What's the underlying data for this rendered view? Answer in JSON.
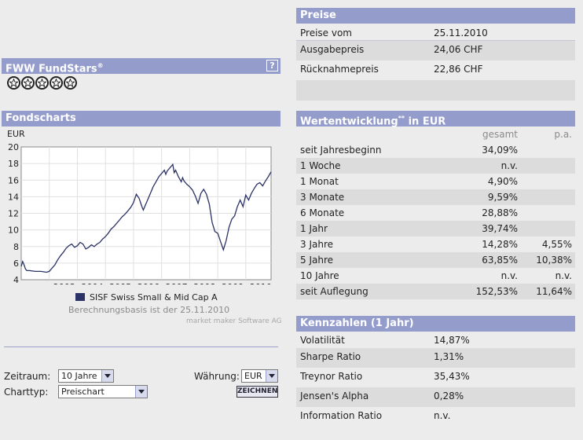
{
  "prices": {
    "title": "Preise",
    "rows": [
      {
        "label": "Preise vom",
        "value": "25.11.2010"
      },
      {
        "label": "Ausgabepreis",
        "value": "24,06 CHF"
      },
      {
        "label": "Rücknahmepreis",
        "value": "22,86 CHF"
      }
    ]
  },
  "fundstars": {
    "title": "FWW FundStars",
    "title_sup": "®",
    "help_label": "?",
    "rating": 5
  },
  "fundscharts": {
    "title": "Fondscharts",
    "legend_text": "SISF Swiss Small & Mid Cap A",
    "basis_text": "Berechnungsbasis ist der 25.11.2010",
    "credit_text": "market maker Software AG",
    "line_color": "#2b3266"
  },
  "chart_data": {
    "type": "line",
    "ylabel": "EUR",
    "ylim": [
      4,
      20
    ],
    "yticks": [
      4,
      6,
      8,
      10,
      12,
      14,
      16,
      18,
      20
    ],
    "xlim": [
      2002.0,
      2010.9
    ],
    "xticks": [
      {
        "label": "2003",
        "x": 2003.0
      },
      {
        "label": "2004",
        "x": 2004.0
      },
      {
        "label": "2005",
        "x": 2005.0
      },
      {
        "label": "2006",
        "x": 2006.0
      },
      {
        "label": "2007",
        "x": 2007.0
      },
      {
        "label": "2008",
        "x": 2008.0
      },
      {
        "label": "2009",
        "x": 2009.0
      },
      {
        "label": "2010",
        "x": 2010.0
      }
    ],
    "grid": true,
    "series": [
      {
        "name": "SISF Swiss Small & Mid Cap A",
        "x": [
          2002.0,
          2002.05,
          2002.1,
          2002.15,
          2002.2,
          2002.3,
          2002.5,
          2002.7,
          2002.9,
          2003.0,
          2003.1,
          2003.2,
          2003.3,
          2003.4,
          2003.5,
          2003.6,
          2003.7,
          2003.8,
          2003.9,
          2004.0,
          2004.1,
          2004.2,
          2004.3,
          2004.4,
          2004.5,
          2004.6,
          2004.7,
          2004.8,
          2004.9,
          2005.0,
          2005.1,
          2005.2,
          2005.3,
          2005.4,
          2005.5,
          2005.6,
          2005.7,
          2005.8,
          2005.9,
          2006.0,
          2006.1,
          2006.2,
          2006.3,
          2006.35,
          2006.4,
          2006.5,
          2006.6,
          2006.7,
          2006.8,
          2006.9,
          2007.0,
          2007.1,
          2007.15,
          2007.2,
          2007.3,
          2007.4,
          2007.45,
          2007.5,
          2007.6,
          2007.7,
          2007.75,
          2007.8,
          2007.9,
          2008.0,
          2008.1,
          2008.2,
          2008.3,
          2008.4,
          2008.5,
          2008.6,
          2008.7,
          2008.8,
          2008.9,
          2009.0,
          2009.1,
          2009.2,
          2009.3,
          2009.4,
          2009.5,
          2009.6,
          2009.7,
          2009.8,
          2009.9,
          2010.0,
          2010.1,
          2010.2,
          2010.3,
          2010.4,
          2010.5,
          2010.6,
          2010.7,
          2010.8,
          2010.9
        ],
        "values": [
          5.6,
          6.2,
          5.8,
          5.3,
          5.1,
          5.1,
          5.0,
          5.0,
          4.9,
          5.0,
          5.4,
          5.8,
          6.4,
          6.9,
          7.3,
          7.8,
          8.1,
          8.3,
          7.9,
          8.1,
          8.5,
          8.3,
          7.7,
          7.9,
          8.2,
          8.0,
          8.3,
          8.5,
          8.9,
          9.2,
          9.6,
          10.1,
          10.4,
          10.8,
          11.2,
          11.6,
          11.9,
          12.3,
          12.7,
          13.3,
          14.3,
          13.8,
          12.8,
          12.4,
          12.8,
          13.6,
          14.4,
          15.2,
          15.8,
          16.4,
          16.8,
          17.2,
          16.7,
          17.1,
          17.5,
          17.9,
          16.9,
          17.2,
          16.4,
          15.8,
          16.3,
          15.9,
          15.5,
          15.2,
          14.8,
          14.1,
          13.2,
          14.4,
          14.9,
          14.3,
          13.1,
          10.9,
          9.8,
          9.6,
          8.6,
          7.6,
          8.7,
          10.3,
          11.3,
          11.7,
          12.8,
          13.6,
          12.8,
          14.2,
          13.6,
          14.4,
          15.0,
          15.5,
          15.7,
          15.3,
          15.9,
          16.4,
          17.0
        ]
      }
    ]
  },
  "controls": {
    "zeitraum_label": "Zeitraum:",
    "zeitraum_value": "10 Jahre",
    "waehrung_label": "Währung:",
    "waehrung_value": "EUR",
    "charttyp_label": "Charttyp:",
    "charttyp_value": "Preischart",
    "draw_button": "ZEICHNEN"
  },
  "performance": {
    "title": "Wertentwicklung",
    "title_sup": "**",
    "title_suffix": " in EUR",
    "col_total": "gesamt",
    "col_pa": "p.a.",
    "rows": [
      {
        "label": "seit Jahresbeginn",
        "total": "34,09%",
        "pa": ""
      },
      {
        "label": "1 Woche",
        "total": "n.v.",
        "pa": ""
      },
      {
        "label": "1 Monat",
        "total": "4,90%",
        "pa": ""
      },
      {
        "label": "3 Monate",
        "total": "9,59%",
        "pa": ""
      },
      {
        "label": "6 Monate",
        "total": "28,88%",
        "pa": ""
      },
      {
        "label": "1 Jahr",
        "total": "39,74%",
        "pa": ""
      },
      {
        "label": "3 Jahre",
        "total": "14,28%",
        "pa": "4,55%"
      },
      {
        "label": "5 Jahre",
        "total": "63,85%",
        "pa": "10,38%"
      },
      {
        "label": "10 Jahre",
        "total": "n.v.",
        "pa": "n.v."
      },
      {
        "label": "seit Auflegung",
        "total": "152,53%",
        "pa": "11,64%"
      }
    ]
  },
  "kennzahlen": {
    "title": "Kennzahlen (1 Jahr)",
    "rows": [
      {
        "label": "Volatilität",
        "value": "14,87%"
      },
      {
        "label": "Sharpe Ratio",
        "value": "1,31%"
      },
      {
        "label": "Treynor Ratio",
        "value": "35,43%"
      },
      {
        "label": "Jensen's Alpha",
        "value": "0,28%"
      },
      {
        "label": "Information Ratio",
        "value": "n.v."
      }
    ]
  }
}
